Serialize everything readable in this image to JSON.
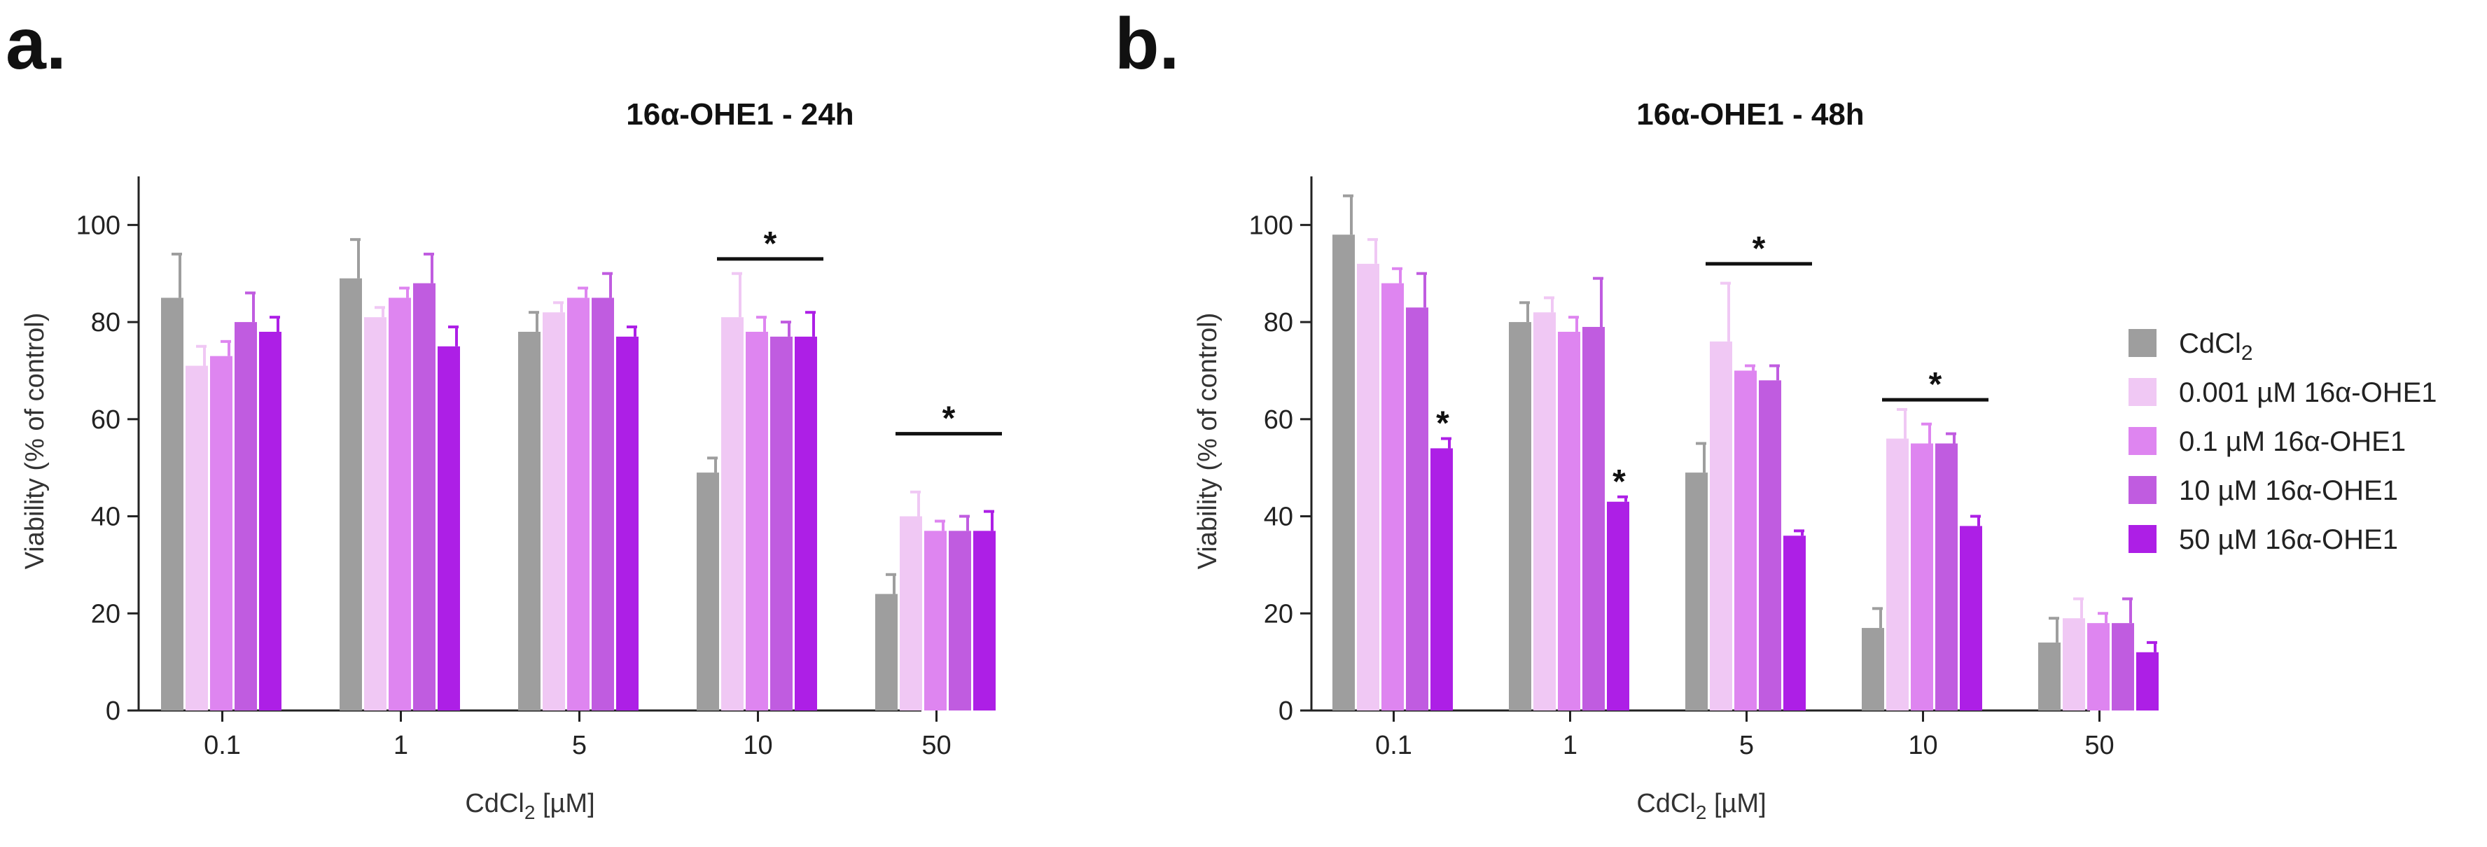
{
  "chart_data": [
    {
      "panel_label": "a.",
      "type": "bar",
      "title": "16α-OHE1 - 24h",
      "xlabel": "CdCl2 [µM]",
      "ylabel": "Viability (% of control)",
      "ylim": [
        0,
        110
      ],
      "yticks": [
        0,
        20,
        40,
        60,
        80,
        100
      ],
      "categories": [
        "0.1",
        "1",
        "5",
        "10",
        "50"
      ],
      "series": [
        {
          "name": "CdCl2",
          "values": [
            85,
            89,
            78,
            49,
            24
          ],
          "errors": [
            9,
            8,
            4,
            3,
            4
          ]
        },
        {
          "name": "0.001 µM 16α-OHE1",
          "values": [
            71,
            81,
            82,
            81,
            40
          ],
          "errors": [
            4,
            2,
            2,
            9,
            5
          ]
        },
        {
          "name": "0.1 µM 16α-OHE1",
          "values": [
            73,
            85,
            85,
            78,
            37
          ],
          "errors": [
            3,
            2,
            2,
            3,
            2
          ]
        },
        {
          "name": "10 µM 16α-OHE1",
          "values": [
            80,
            88,
            85,
            77,
            37
          ],
          "errors": [
            6,
            6,
            5,
            3,
            3
          ]
        },
        {
          "name": "50 µM 16α-OHE1",
          "values": [
            78,
            75,
            77,
            77,
            37
          ],
          "errors": [
            3,
            4,
            2,
            5,
            4
          ]
        }
      ],
      "significance": [
        {
          "label": "*",
          "type": "group",
          "category": "10",
          "y": 93
        },
        {
          "label": "*",
          "type": "group",
          "category": "50",
          "y": 57
        }
      ],
      "grid": false
    },
    {
      "panel_label": "b.",
      "type": "bar",
      "title": "16α-OHE1 - 48h",
      "xlabel": "CdCl2 [µM]",
      "ylabel": "Viability (% of control)",
      "ylim": [
        0,
        110
      ],
      "yticks": [
        0,
        20,
        40,
        60,
        80,
        100
      ],
      "categories": [
        "0.1",
        "1",
        "5",
        "10",
        "50"
      ],
      "series": [
        {
          "name": "CdCl2",
          "values": [
            98,
            80,
            49,
            17,
            14
          ],
          "errors": [
            8,
            4,
            6,
            4,
            5
          ]
        },
        {
          "name": "0.001 µM 16α-OHE1",
          "values": [
            92,
            82,
            76,
            56,
            19
          ],
          "errors": [
            5,
            3,
            12,
            6,
            4
          ]
        },
        {
          "name": "0.1 µM 16α-OHE1",
          "values": [
            88,
            78,
            70,
            55,
            18
          ],
          "errors": [
            3,
            3,
            1,
            4,
            2
          ]
        },
        {
          "name": "10 µM 16α-OHE1",
          "values": [
            83,
            79,
            68,
            55,
            18
          ],
          "errors": [
            7,
            10,
            3,
            2,
            5
          ]
        },
        {
          "name": "50 µM 16α-OHE1",
          "values": [
            54,
            43,
            36,
            38,
            12
          ],
          "errors": [
            2,
            1,
            1,
            2,
            2
          ]
        }
      ],
      "significance": [
        {
          "label": "*",
          "type": "bar",
          "category": "0.1",
          "series": 4
        },
        {
          "label": "*",
          "type": "bar",
          "category": "1",
          "series": 4
        },
        {
          "label": "*",
          "type": "group",
          "category": "5",
          "y": 92
        },
        {
          "label": "*",
          "type": "group",
          "category": "10",
          "y": 64
        }
      ],
      "grid": false
    }
  ],
  "legend": {
    "placement": "right",
    "items": [
      {
        "main": "CdCl",
        "sub": "2",
        "rest": "",
        "color": "#9e9e9e"
      },
      {
        "main": "0.001 µM 16α-OHE1",
        "sub": "",
        "rest": "",
        "color": "#f0c8f4"
      },
      {
        "main": "0.1 µM 16α-OHE1",
        "sub": "",
        "rest": "",
        "color": "#de85f0"
      },
      {
        "main": "10 µM 16α-OHE1",
        "sub": "",
        "rest": "",
        "color": "#c05ce0"
      },
      {
        "main": "50 µM 16α-OHE1",
        "sub": "",
        "rest": "",
        "color": "#ad1fe6"
      }
    ]
  },
  "axis_text": {
    "xlabel_main": "CdCl",
    "xlabel_sub": "2",
    "xlabel_rest": " [µM]"
  },
  "colors": [
    "#9e9e9e",
    "#f0c8f4",
    "#de85f0",
    "#c05ce0",
    "#ad1fe6"
  ]
}
